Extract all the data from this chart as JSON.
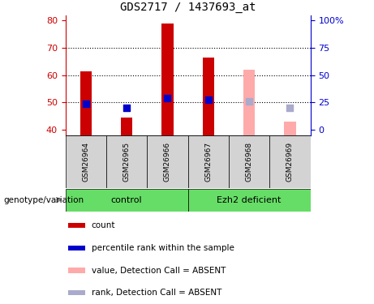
{
  "title": "GDS2717 / 1437693_at",
  "samples": [
    "GSM26964",
    "GSM26965",
    "GSM26966",
    "GSM26967",
    "GSM26968",
    "GSM26969"
  ],
  "ylim_left": [
    38,
    82
  ],
  "yticks_left": [
    40,
    50,
    60,
    70,
    80
  ],
  "yticks_right_data": [
    0,
    25,
    50,
    75,
    100
  ],
  "ytick_labels_right": [
    "0",
    "25",
    "50",
    "75",
    "100%"
  ],
  "bar_values": [
    61.5,
    44.5,
    79.0,
    66.5,
    null,
    null
  ],
  "bar_absent_values": [
    null,
    null,
    null,
    null,
    62.0,
    43.0
  ],
  "rank_values": [
    49.5,
    48.0,
    51.5,
    51.0,
    null,
    null
  ],
  "rank_absent_values": [
    null,
    null,
    null,
    null,
    50.5,
    48.0
  ],
  "left_axis_color": "#cc0000",
  "right_axis_color": "#0000cc",
  "bar_color": "#cc0000",
  "bar_absent_color": "#ffaaaa",
  "rank_color": "#0000cc",
  "rank_absent_color": "#aaaacc",
  "sample_bg": "#d3d3d3",
  "group_bg": "#66dd66",
  "legend_items": [
    {
      "label": "count",
      "color": "#cc0000"
    },
    {
      "label": "percentile rank within the sample",
      "color": "#0000cc"
    },
    {
      "label": "value, Detection Call = ABSENT",
      "color": "#ffaaaa"
    },
    {
      "label": "rank, Detection Call = ABSENT",
      "color": "#aaaacc"
    }
  ],
  "genotype_label": "genotype/variation",
  "control_label": "control",
  "ezh2_label": "Ezh2 deficient"
}
